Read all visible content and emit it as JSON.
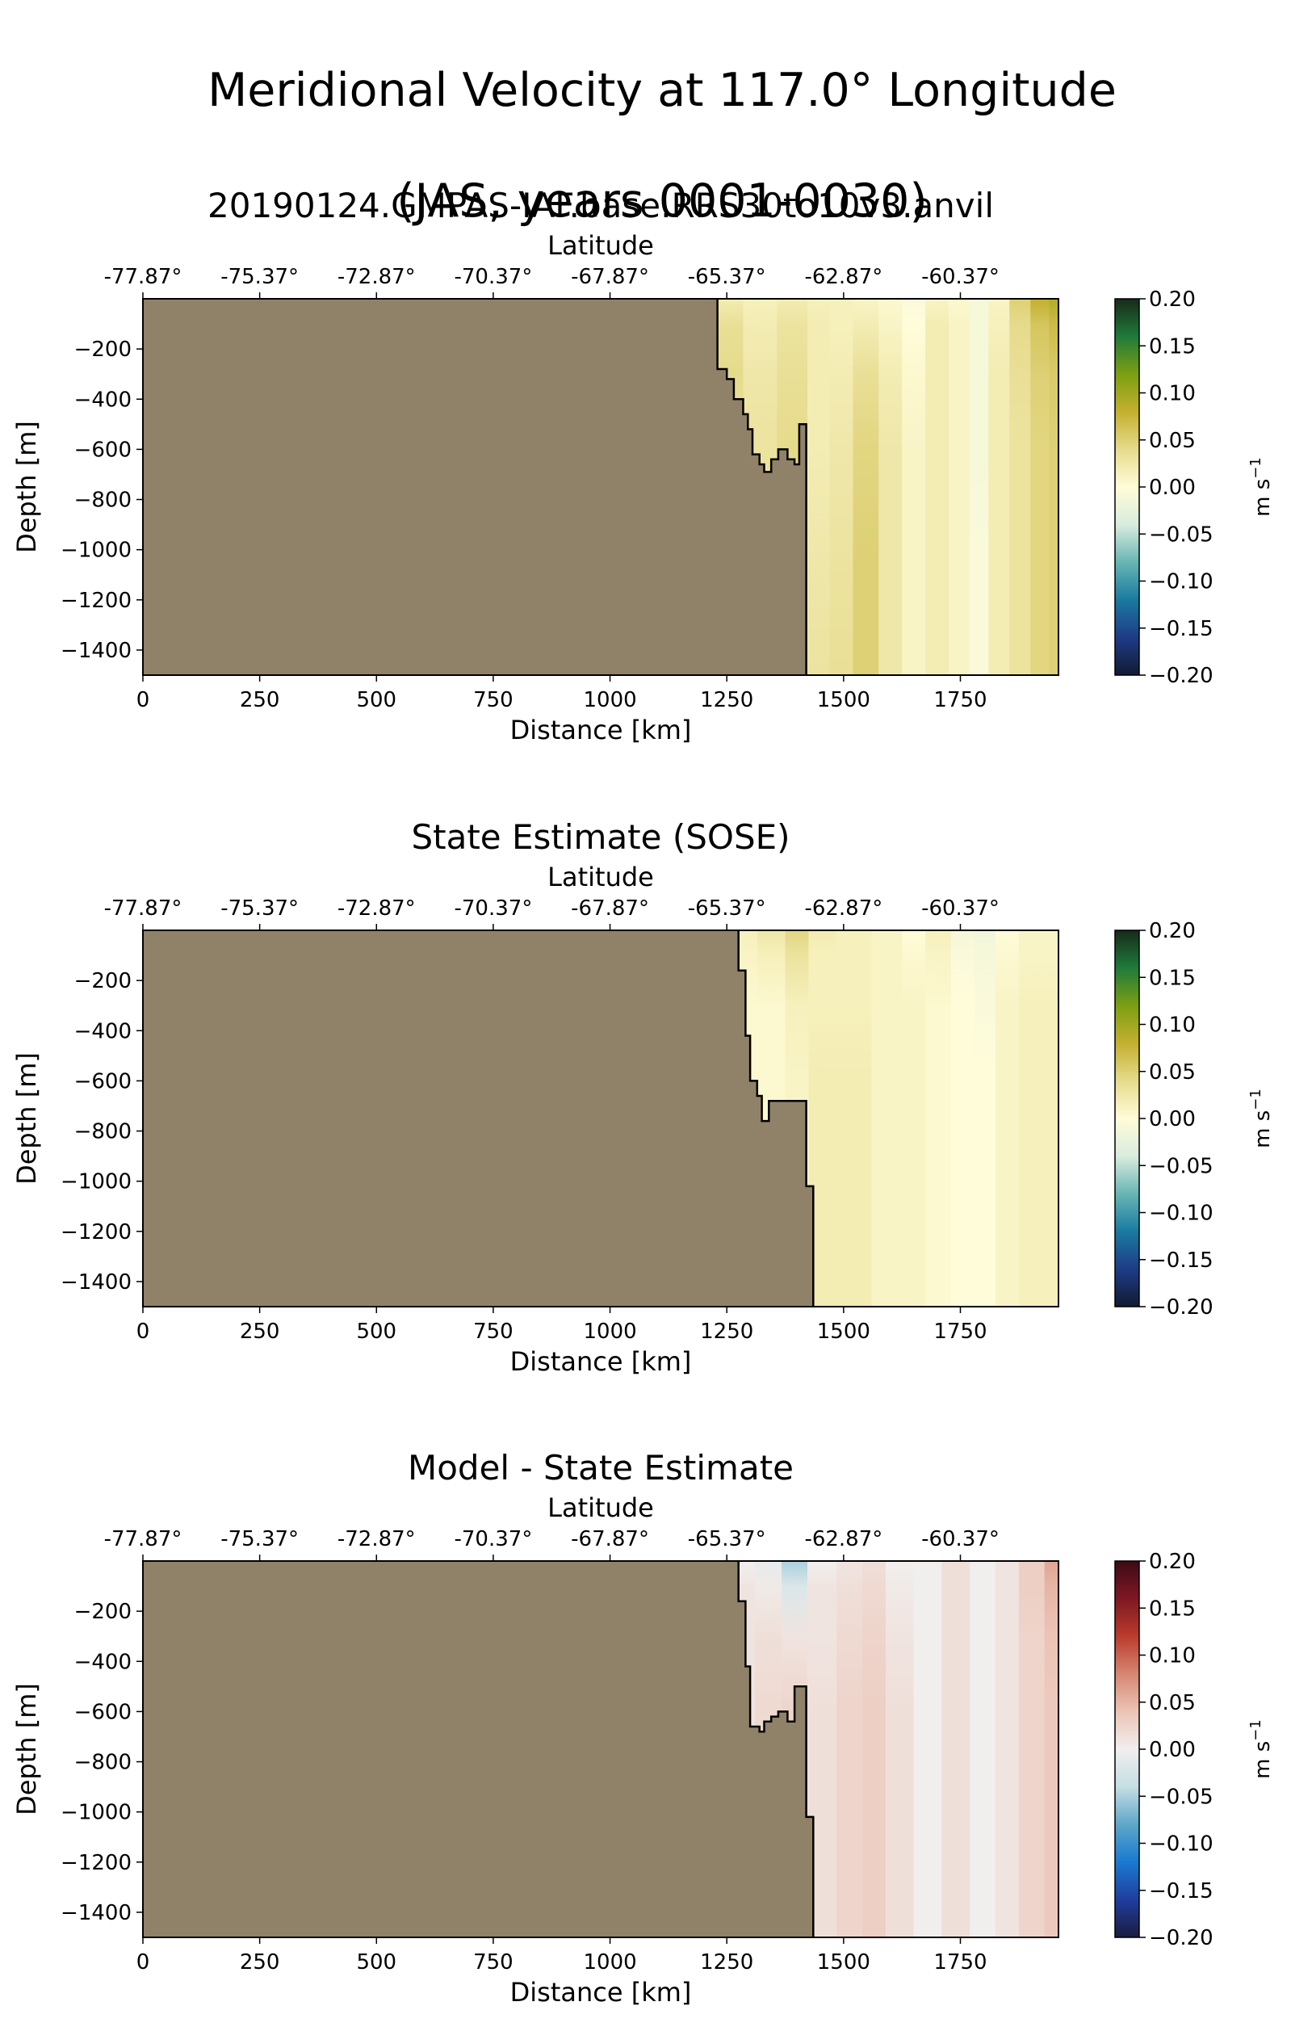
{
  "figure": {
    "title_line1": "Meridional Velocity at 117.0° Longitude",
    "title_line2": "(JAS, years 0001-0030)"
  },
  "colors": {
    "land": "#908268",
    "balance_cmap": [
      "#1b1c3e",
      "#1f3e9e",
      "#1a7ad0",
      "#5ea7c8",
      "#c5dee4",
      "#f1efee",
      "#ecc4b6",
      "#d78672",
      "#ba3c2d",
      "#7e1824",
      "#3d0b15"
    ],
    "delta_cmap": [
      "#121a32",
      "#1e3c87",
      "#1a7aa0",
      "#68b6b4",
      "#d9ecde",
      "#fffcd9",
      "#e6db8c",
      "#c3b030",
      "#7c9f12",
      "#1f7a3b",
      "#172a1a"
    ]
  },
  "chart_data": [
    {
      "type": "heatmap",
      "title": "20190124.GMPAS-IAF.base.RRS30to10v3.anvil",
      "xlabel": "Distance [km]",
      "ylabel": "Depth [m]",
      "top_xlabel": "Latitude",
      "xlim": [
        0,
        1960
      ],
      "ylim": [
        -1500,
        0
      ],
      "xticks": [
        0,
        250,
        500,
        750,
        1000,
        1250,
        1500,
        1750
      ],
      "yticks": [
        -200,
        -400,
        -600,
        -800,
        -1000,
        -1200,
        -1400
      ],
      "top_xticks": [
        "-77.87°",
        "-75.37°",
        "-72.87°",
        "-70.37°",
        "-67.87°",
        "-65.37°",
        "-62.87°",
        "-60.37°"
      ],
      "colormap": "delta",
      "colorbar": {
        "label": "m s$^{-1}$",
        "unit_main": "m s",
        "unit_exp": "−1",
        "range": [
          -0.2,
          0.2
        ],
        "ticks": [
          "0.20",
          "0.15",
          "0.10",
          "0.05",
          "0.00",
          "−0.05",
          "−0.10",
          "−0.15",
          "−0.20"
        ]
      },
      "bathymetry": [
        [
          1230,
          0
        ],
        [
          1230,
          -280
        ],
        [
          1250,
          -280
        ],
        [
          1250,
          -320
        ],
        [
          1265,
          -320
        ],
        [
          1265,
          -400
        ],
        [
          1285,
          -400
        ],
        [
          1285,
          -460
        ],
        [
          1295,
          -460
        ],
        [
          1295,
          -520
        ],
        [
          1305,
          -520
        ],
        [
          1305,
          -620
        ],
        [
          1320,
          -620
        ],
        [
          1320,
          -660
        ],
        [
          1330,
          -660
        ],
        [
          1330,
          -690
        ],
        [
          1345,
          -690
        ],
        [
          1345,
          -640
        ],
        [
          1360,
          -640
        ],
        [
          1360,
          -600
        ],
        [
          1380,
          -600
        ],
        [
          1380,
          -640
        ],
        [
          1395,
          -640
        ],
        [
          1395,
          -660
        ],
        [
          1405,
          -660
        ],
        [
          1405,
          -500
        ],
        [
          1420,
          -500
        ],
        [
          1420,
          -1500
        ]
      ],
      "columns": [
        {
          "x": 1250,
          "values": [
            0.02,
            0.035,
            0.04,
            0.03,
            0.025,
            0.02
          ]
        },
        {
          "x": 1320,
          "values": [
            0.015,
            0.02,
            0.025,
            0.03,
            0.03,
            0.03
          ]
        },
        {
          "x": 1395,
          "values": [
            0.02,
            0.03,
            0.035,
            0.04,
            0.04,
            0.04
          ]
        },
        {
          "x": 1450,
          "values": [
            0.015,
            0.02,
            0.02,
            0.02,
            0.025,
            0.03
          ]
        },
        {
          "x": 1490,
          "values": [
            0.015,
            0.015,
            0.02,
            0.025,
            0.03,
            0.035
          ]
        },
        {
          "x": 1550,
          "values": [
            0.01,
            0.02,
            0.035,
            0.045,
            0.05,
            0.05
          ]
        },
        {
          "x": 1600,
          "values": [
            0.005,
            0.01,
            0.02,
            0.025,
            0.025,
            0.025
          ]
        },
        {
          "x": 1650,
          "values": [
            -0.005,
            0.0,
            0.005,
            0.01,
            0.01,
            0.01
          ]
        },
        {
          "x": 1700,
          "values": [
            0.01,
            0.02,
            0.02,
            0.02,
            0.02,
            0.02
          ]
        },
        {
          "x": 1750,
          "values": [
            0.005,
            0.01,
            0.01,
            0.01,
            0.01,
            0.01
          ]
        },
        {
          "x": 1790,
          "values": [
            -0.01,
            -0.01,
            -0.01,
            -0.01,
            -0.005,
            -0.005
          ]
        },
        {
          "x": 1830,
          "values": [
            0.01,
            0.015,
            0.02,
            0.02,
            0.02,
            0.02
          ]
        },
        {
          "x": 1880,
          "values": [
            0.05,
            0.04,
            0.035,
            0.03,
            0.03,
            0.03
          ]
        },
        {
          "x": 1920,
          "values": [
            0.08,
            0.06,
            0.05,
            0.045,
            0.045,
            0.045
          ]
        },
        {
          "x": 1960,
          "values": [
            0.09,
            0.07,
            0.055,
            0.05,
            0.05,
            0.05
          ]
        }
      ]
    },
    {
      "type": "heatmap",
      "title": "State Estimate (SOSE)",
      "xlabel": "Distance [km]",
      "ylabel": "Depth [m]",
      "top_xlabel": "Latitude",
      "xlim": [
        0,
        1960
      ],
      "ylim": [
        -1500,
        0
      ],
      "xticks": [
        0,
        250,
        500,
        750,
        1000,
        1250,
        1500,
        1750
      ],
      "yticks": [
        -200,
        -400,
        -600,
        -800,
        -1000,
        -1200,
        -1400
      ],
      "top_xticks": [
        "-77.87°",
        "-75.37°",
        "-72.87°",
        "-70.37°",
        "-67.87°",
        "-65.37°",
        "-62.87°",
        "-60.37°"
      ],
      "colormap": "delta",
      "colorbar": {
        "label": "m s$^{-1}$",
        "unit_main": "m s",
        "unit_exp": "−1",
        "range": [
          -0.2,
          0.2
        ],
        "ticks": [
          "0.20",
          "0.15",
          "0.10",
          "0.05",
          "0.00",
          "−0.05",
          "−0.10",
          "−0.15",
          "−0.20"
        ]
      },
      "bathymetry": [
        [
          1275,
          0
        ],
        [
          1275,
          -160
        ],
        [
          1290,
          -160
        ],
        [
          1290,
          -420
        ],
        [
          1300,
          -420
        ],
        [
          1300,
          -600
        ],
        [
          1315,
          -600
        ],
        [
          1315,
          -660
        ],
        [
          1325,
          -660
        ],
        [
          1325,
          -760
        ],
        [
          1340,
          -760
        ],
        [
          1340,
          -680
        ],
        [
          1420,
          -680
        ],
        [
          1420,
          -1020
        ],
        [
          1435,
          -1020
        ],
        [
          1435,
          -1500
        ]
      ],
      "columns": [
        {
          "x": 1280,
          "values": [
            0.015,
            0.01,
            0.005,
            0.005,
            0.005,
            0.005
          ]
        },
        {
          "x": 1350,
          "values": [
            0.025,
            0.015,
            0.005,
            0.005,
            0.005,
            0.005
          ]
        },
        {
          "x": 1400,
          "values": [
            0.045,
            0.03,
            0.015,
            0.01,
            0.01,
            0.01
          ]
        },
        {
          "x": 1450,
          "values": [
            0.02,
            0.015,
            0.015,
            0.02,
            0.02,
            0.02
          ]
        },
        {
          "x": 1520,
          "values": [
            0.015,
            0.015,
            0.015,
            0.02,
            0.02,
            0.02
          ]
        },
        {
          "x": 1600,
          "values": [
            0.01,
            0.01,
            0.01,
            0.01,
            0.01,
            0.01
          ]
        },
        {
          "x": 1650,
          "values": [
            0.0,
            0.005,
            0.01,
            0.01,
            0.01,
            0.01
          ]
        },
        {
          "x": 1700,
          "values": [
            0.015,
            0.01,
            0.005,
            0.005,
            0.005,
            0.005
          ]
        },
        {
          "x": 1760,
          "values": [
            -0.01,
            -0.005,
            0.0,
            0.0,
            0.0,
            0.0
          ]
        },
        {
          "x": 1800,
          "values": [
            -0.015,
            -0.01,
            -0.005,
            0.0,
            0.0,
            0.0
          ]
        },
        {
          "x": 1850,
          "values": [
            0.0,
            0.005,
            0.01,
            0.01,
            0.01,
            0.01
          ]
        },
        {
          "x": 1900,
          "values": [
            0.01,
            0.01,
            0.015,
            0.015,
            0.015,
            0.015
          ]
        },
        {
          "x": 1960,
          "values": [
            0.01,
            0.01,
            0.015,
            0.015,
            0.015,
            0.015
          ]
        }
      ]
    },
    {
      "type": "heatmap",
      "title": "Model - State Estimate",
      "xlabel": "Distance [km]",
      "ylabel": "Depth [m]",
      "top_xlabel": "Latitude",
      "xlim": [
        0,
        1960
      ],
      "ylim": [
        -1500,
        0
      ],
      "xticks": [
        0,
        250,
        500,
        750,
        1000,
        1250,
        1500,
        1750
      ],
      "yticks": [
        -200,
        -400,
        -600,
        -800,
        -1000,
        -1200,
        -1400
      ],
      "top_xticks": [
        "-77.87°",
        "-75.37°",
        "-72.87°",
        "-70.37°",
        "-67.87°",
        "-65.37°",
        "-62.87°",
        "-60.37°"
      ],
      "colormap": "balance",
      "colorbar": {
        "label": "m s$^{-1}$",
        "unit_main": "m s",
        "unit_exp": "−1",
        "range": [
          -0.2,
          0.2
        ],
        "ticks": [
          "0.20",
          "0.15",
          "0.10",
          "0.05",
          "0.00",
          "−0.05",
          "−0.10",
          "−0.15",
          "−0.20"
        ]
      },
      "bathymetry": [
        [
          1275,
          0
        ],
        [
          1275,
          -160
        ],
        [
          1290,
          -160
        ],
        [
          1290,
          -420
        ],
        [
          1300,
          -420
        ],
        [
          1300,
          -660
        ],
        [
          1320,
          -660
        ],
        [
          1320,
          -680
        ],
        [
          1330,
          -680
        ],
        [
          1330,
          -640
        ],
        [
          1345,
          -640
        ],
        [
          1345,
          -620
        ],
        [
          1360,
          -620
        ],
        [
          1360,
          -600
        ],
        [
          1380,
          -600
        ],
        [
          1380,
          -640
        ],
        [
          1395,
          -640
        ],
        [
          1395,
          -500
        ],
        [
          1420,
          -500
        ],
        [
          1420,
          -1020
        ],
        [
          1435,
          -1020
        ],
        [
          1435,
          -1500
        ]
      ],
      "columns": [
        {
          "x": 1280,
          "values": [
            0.0,
            0.01,
            0.01,
            0.01,
            0.01,
            0.01
          ]
        },
        {
          "x": 1340,
          "values": [
            -0.01,
            0.005,
            0.015,
            0.02,
            0.02,
            0.02
          ]
        },
        {
          "x": 1395,
          "values": [
            -0.05,
            -0.02,
            0.01,
            0.025,
            0.025,
            0.025
          ]
        },
        {
          "x": 1450,
          "values": [
            0.0,
            0.01,
            0.01,
            0.015,
            0.015,
            0.015
          ]
        },
        {
          "x": 1520,
          "values": [
            0.01,
            0.015,
            0.02,
            0.025,
            0.025,
            0.025
          ]
        },
        {
          "x": 1560,
          "values": [
            0.015,
            0.02,
            0.025,
            0.03,
            0.03,
            0.03
          ]
        },
        {
          "x": 1620,
          "values": [
            0.0,
            0.005,
            0.01,
            0.015,
            0.015,
            0.015
          ]
        },
        {
          "x": 1680,
          "values": [
            0.0,
            0.0,
            0.0,
            0.0,
            0.0,
            0.0
          ]
        },
        {
          "x": 1740,
          "values": [
            0.015,
            0.015,
            0.015,
            0.015,
            0.015,
            0.015
          ]
        },
        {
          "x": 1800,
          "values": [
            0.0,
            0.0,
            0.0,
            0.0,
            0.0,
            0.0
          ]
        },
        {
          "x": 1850,
          "values": [
            0.01,
            0.01,
            0.01,
            0.01,
            0.01,
            0.01
          ]
        },
        {
          "x": 1900,
          "values": [
            0.03,
            0.03,
            0.025,
            0.025,
            0.025,
            0.025
          ]
        },
        {
          "x": 1960,
          "values": [
            0.06,
            0.05,
            0.04,
            0.035,
            0.035,
            0.035
          ]
        }
      ]
    }
  ]
}
